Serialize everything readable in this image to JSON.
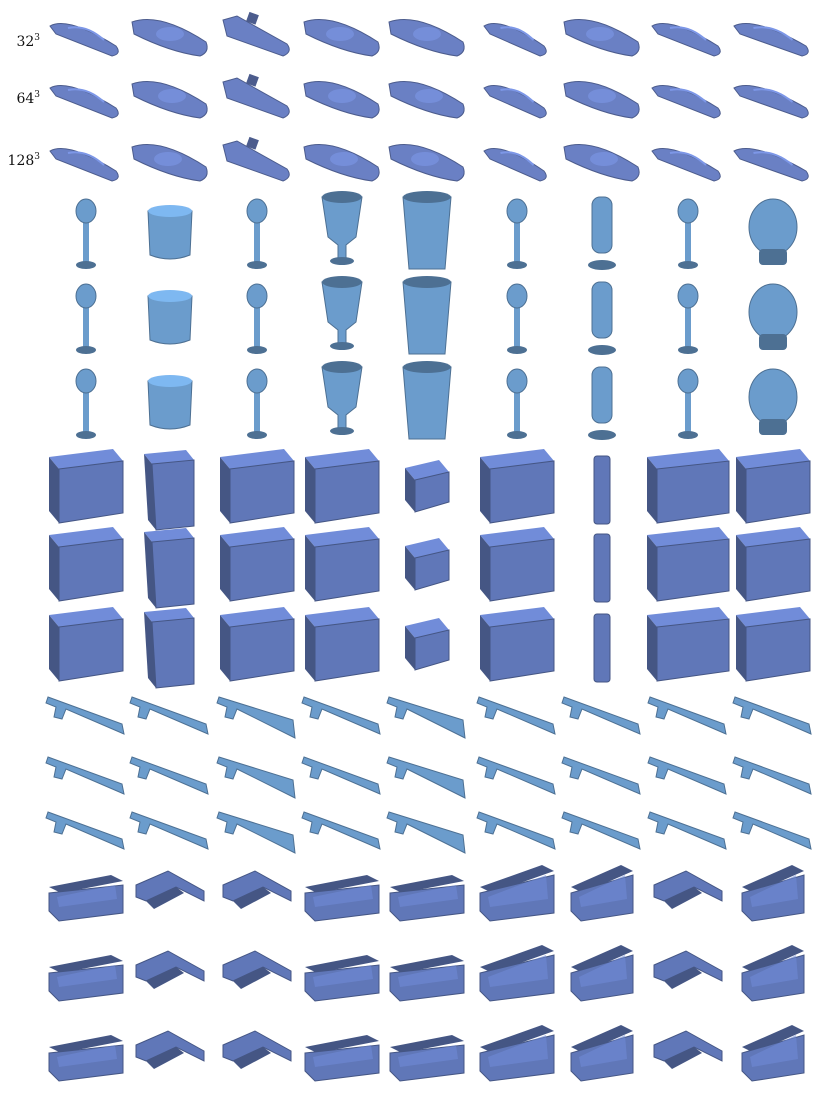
{
  "figure": {
    "row_labels": [
      {
        "base": "32",
        "exp": "3"
      },
      {
        "base": "64",
        "exp": "3"
      },
      {
        "base": "128",
        "exp": "3"
      }
    ],
    "categories": [
      {
        "id": "boats",
        "color": "#6a80c4",
        "shape": "boat",
        "variants": [
          "boat",
          "boat-wide",
          "jetski",
          "boat-deck",
          "boat-hull",
          "boat-slim",
          "boat-wide",
          "boat",
          "canoe"
        ]
      },
      {
        "id": "lamps",
        "color": "#6b9ccc",
        "shape": "lamp",
        "variants": [
          "lamp",
          "drum",
          "lamp",
          "goblet",
          "vase",
          "lamp",
          "cylinder",
          "lamp",
          "head"
        ]
      },
      {
        "id": "cabinets",
        "color": "#6077b8",
        "shape": "box",
        "variants": [
          "box",
          "box-tall",
          "box",
          "box",
          "box-small",
          "box",
          "pillar",
          "box-wide",
          "box"
        ]
      },
      {
        "id": "rifles",
        "color": "#6b9ccc",
        "shape": "rifle",
        "variants": [
          "rifle",
          "rifle",
          "rifle-thick",
          "rifle",
          "rifle-thick",
          "rifle",
          "rifle",
          "rifle",
          "rifle"
        ]
      },
      {
        "id": "sofas",
        "color": "#6077b8",
        "shape": "sofa",
        "variants": [
          "sofa",
          "sofa-l",
          "sofa-l",
          "sofa",
          "sofa",
          "sofa-high",
          "armchair",
          "sofa-l",
          "armchair"
        ]
      }
    ]
  }
}
